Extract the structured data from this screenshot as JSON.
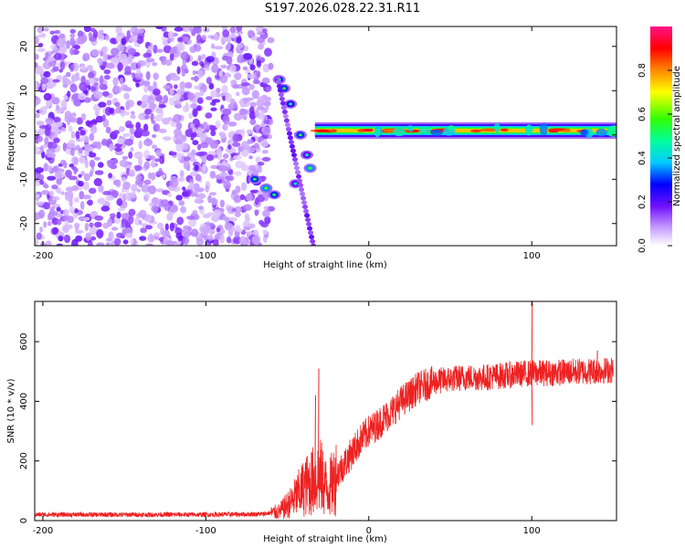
{
  "title": "S197.2026.028.22.31.R11",
  "chart_data": [
    {
      "type": "heatmap",
      "name": "spectrogram",
      "xlabel": "Height of straight line (km)",
      "ylabel": "Frequency (Hz)",
      "xlim": [
        -205,
        152
      ],
      "ylim": [
        -25,
        24.5
      ],
      "xticks": [
        -200,
        -100,
        0,
        100
      ],
      "yticks": [
        -20,
        -10,
        0,
        10,
        20
      ],
      "noise_region_km": [
        -205,
        -60
      ],
      "trace_points": [
        {
          "x": -55,
          "y": 12.5,
          "v": 0.3
        },
        {
          "x": -52,
          "y": 10.5,
          "v": 0.3
        },
        {
          "x": -48,
          "y": 7.0,
          "v": 0.25
        },
        {
          "x": -42,
          "y": 0.0,
          "v": 0.3
        },
        {
          "x": -36,
          "y": -7.5,
          "v": 0.35
        },
        {
          "x": -38,
          "y": -4.5,
          "v": 0.2
        },
        {
          "x": -70,
          "y": -10.0,
          "v": 0.3
        },
        {
          "x": -63,
          "y": -12.0,
          "v": 0.35
        },
        {
          "x": -58,
          "y": -13.5,
          "v": 0.3
        },
        {
          "x": -45,
          "y": -11.0,
          "v": 0.2
        }
      ],
      "tone_line": {
        "x_start": -33,
        "x_end": 152,
        "freq_hz": 1.0,
        "value": 0.85
      },
      "colorbar": {
        "label": "Normalized spectral amplitude",
        "range": [
          0,
          1
        ],
        "ticks": [
          "0.0",
          "0.2",
          "0.4",
          "0.6",
          "0.8"
        ],
        "tick_values": [
          0,
          0.2,
          0.4,
          0.6,
          0.8
        ]
      }
    },
    {
      "type": "line",
      "name": "snr",
      "color": "#ee2222",
      "xlabel": "Height of straight line (km)",
      "ylabel": "SNR (10 * v/v)",
      "xlim": [
        -205,
        152
      ],
      "ylim": [
        0,
        735
      ],
      "xticks": [
        -200,
        -100,
        0,
        100
      ],
      "yticks": [
        0,
        200,
        400,
        600
      ],
      "x": [
        -205,
        -150,
        -100,
        -65,
        -55,
        -48,
        -40,
        -30,
        -25,
        -20,
        -15,
        -10,
        -5,
        0,
        5,
        10,
        15,
        20,
        25,
        30,
        40,
        50,
        60,
        70,
        80,
        90,
        100,
        110,
        120,
        130,
        140,
        150
      ],
      "y": [
        20,
        20,
        20,
        22,
        30,
        60,
        110,
        150,
        100,
        150,
        190,
        230,
        270,
        300,
        320,
        345,
        370,
        400,
        420,
        445,
        465,
        475,
        480,
        480,
        485,
        490,
        495,
        495,
        498,
        500,
        502,
        505
      ],
      "spikes": [
        {
          "x": -31,
          "y": 510
        },
        {
          "x": -33,
          "y": 420
        },
        {
          "x": 100,
          "y": 735
        },
        {
          "x": 100,
          "y": 320
        },
        {
          "x": 140,
          "y": 570
        }
      ]
    }
  ]
}
